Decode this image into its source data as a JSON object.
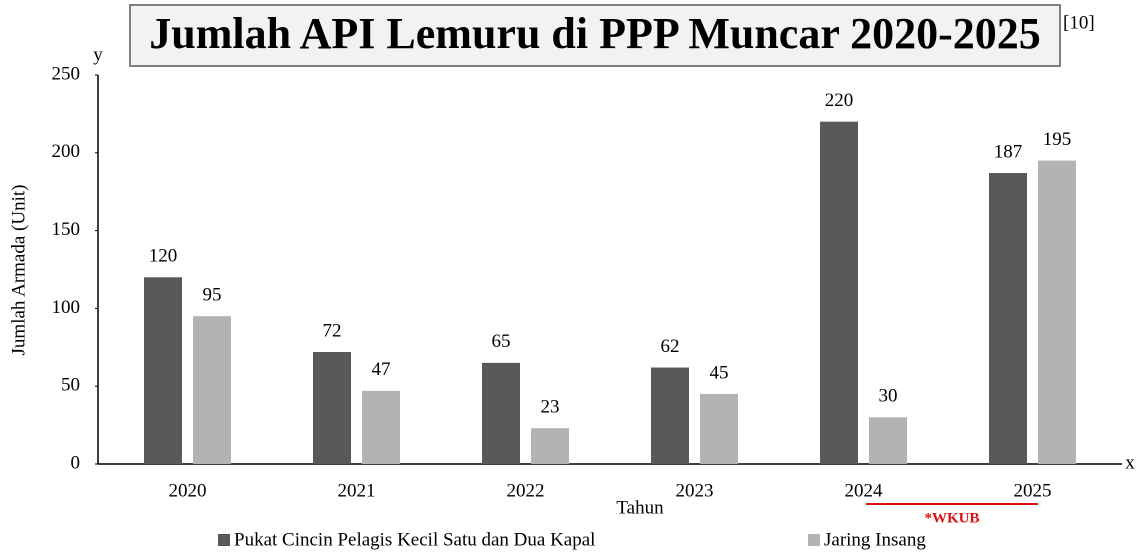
{
  "chart_data": {
    "type": "bar",
    "title": "Jumlah API Lemuru di PPP Muncar 2020-2025",
    "reference": "[10]",
    "y_axis_letter": "y",
    "x_axis_letter": "x",
    "xlabel": "Tahun",
    "ylabel": "Jumlah Armada (Unit)",
    "annotation": "*WKUB",
    "categories": [
      "2020",
      "2021",
      "2022",
      "2023",
      "2024",
      "2025"
    ],
    "series": [
      {
        "name": "Pukat Cincin Pelagis Kecil Satu dan Dua Kapal",
        "color": "#595959",
        "values": [
          120,
          72,
          65,
          62,
          220,
          187
        ]
      },
      {
        "name": "Jaring Insang",
        "color": "#b3b3b3",
        "values": [
          95,
          47,
          23,
          45,
          30,
          195
        ]
      }
    ],
    "ylim": [
      0,
      250
    ],
    "yticks": [
      0,
      50,
      100,
      150,
      200,
      250
    ],
    "grid": false,
    "legend": "bottom"
  }
}
